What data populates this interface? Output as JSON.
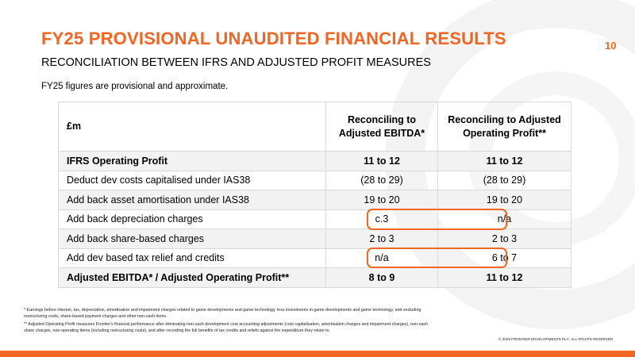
{
  "header": {
    "title": "FY25 PROVISIONAL UNAUDITED FINANCIAL RESULTS",
    "subtitle": "RECONCILIATION BETWEEN IFRS AND ADJUSTED PROFIT MEASURES",
    "page_number": "10"
  },
  "note": "FY25 figures are provisional and approximate.",
  "table": {
    "columns": [
      "£m",
      "Reconciling to Adjusted EBITDA*",
      "Reconciling to Adjusted Operating Profit**"
    ],
    "rows": [
      [
        "IFRS Operating Profit",
        "11 to 12",
        "11 to 12"
      ],
      [
        "Deduct dev costs capitalised under IAS38",
        "(28 to 29)",
        "(28 to 29)"
      ],
      [
        "Add back asset amortisation under IAS38",
        "19 to 20",
        "19 to 20"
      ],
      [
        "Add back depreciation charges",
        "c.3",
        "n/a"
      ],
      [
        "Add back share-based charges",
        "2 to 3",
        "2 to 3"
      ],
      [
        "Add dev based tax relief and credits",
        "n/a",
        "6 to 7"
      ],
      [
        "Adjusted EBITDA* / Adjusted Operating Profit**",
        "8 to 9",
        "11 to 12"
      ]
    ]
  },
  "footnotes": [
    "* Earnings before interest, tax, depreciation, amortisation and impairment charges related to game developments and game technology, less investments in game developments and game technology, and excluding restructuring costs, share-based payment charges and other non-cash items.",
    "** Adjusted Operating Profit measures Frontier's financial performance after eliminating non-cash development cost accounting adjustments (cost capitalisation, amortisation charges and impairment charges), non-cash share charges, non-operating items (including restructuring costs), and after recording the full benefits of tax credits and reliefs against the expenditure they relate to."
  ],
  "copyright": "© 2025 FRONTIER DEVELOPMENTS PLC. ALL RIGHTS RESERVED"
}
